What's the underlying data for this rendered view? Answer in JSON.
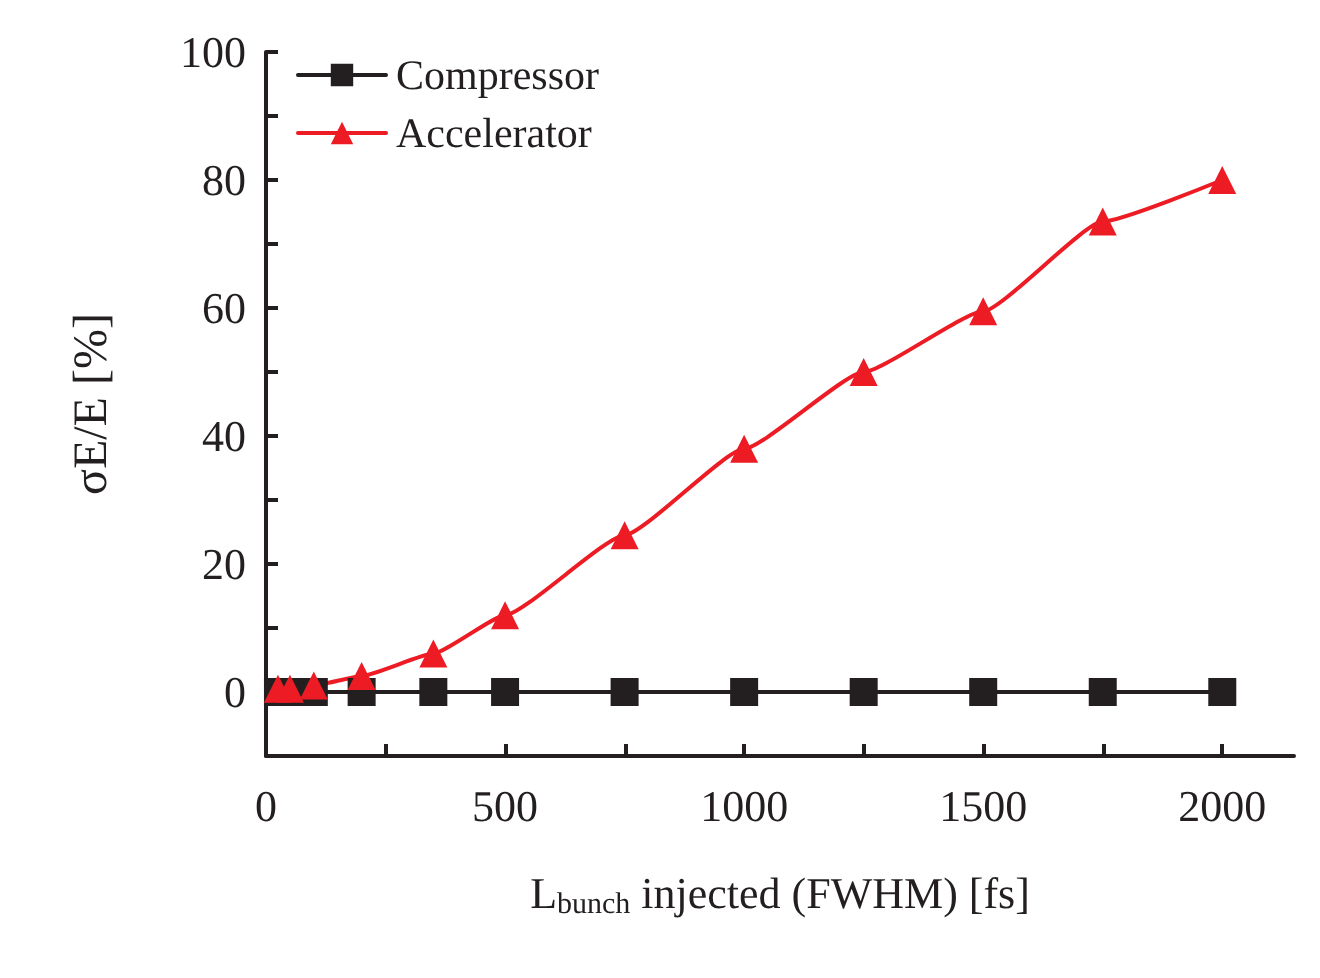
{
  "chart_data": {
    "type": "line",
    "xlabel": "L$_{bunch}$ injected (FWHM) [fs]",
    "ylabel": "σE/E [%]",
    "xlim": [
      0,
      2150
    ],
    "ylim": [
      -10,
      100
    ],
    "xticks": [
      0,
      {
        "value": 250,
        "label": null
      },
      500,
      {
        "value": 750,
        "label": null
      },
      1000,
      {
        "value": 1250,
        "label": null
      },
      1500,
      {
        "value": 1750,
        "label": null
      },
      2000
    ],
    "yticks": [
      {
        "value": -10,
        "label": null
      },
      0,
      {
        "value": 10,
        "label": null
      },
      20,
      {
        "value": 30,
        "label": null
      },
      40,
      {
        "value": 50,
        "label": null
      },
      60,
      {
        "value": 70,
        "label": null
      },
      80,
      {
        "value": 90,
        "label": null
      },
      100
    ],
    "x": [
      25,
      50,
      100,
      200,
      350,
      500,
      750,
      1000,
      1250,
      1500,
      1750,
      2000
    ],
    "series": [
      {
        "name": "Compressor",
        "color": "#231f20",
        "marker": "square",
        "values": [
          0,
          0,
          0,
          0,
          0,
          0,
          0,
          0,
          0,
          0,
          0,
          0
        ]
      },
      {
        "name": "Accelerator",
        "color": "#ed1c24",
        "marker": "triangle",
        "values": [
          0.5,
          0.5,
          1,
          2.5,
          6,
          12,
          24.5,
          38,
          50,
          59.5,
          73.5,
          80
        ]
      }
    ],
    "legend": "top left",
    "grid": false,
    "line_style": "solid"
  }
}
